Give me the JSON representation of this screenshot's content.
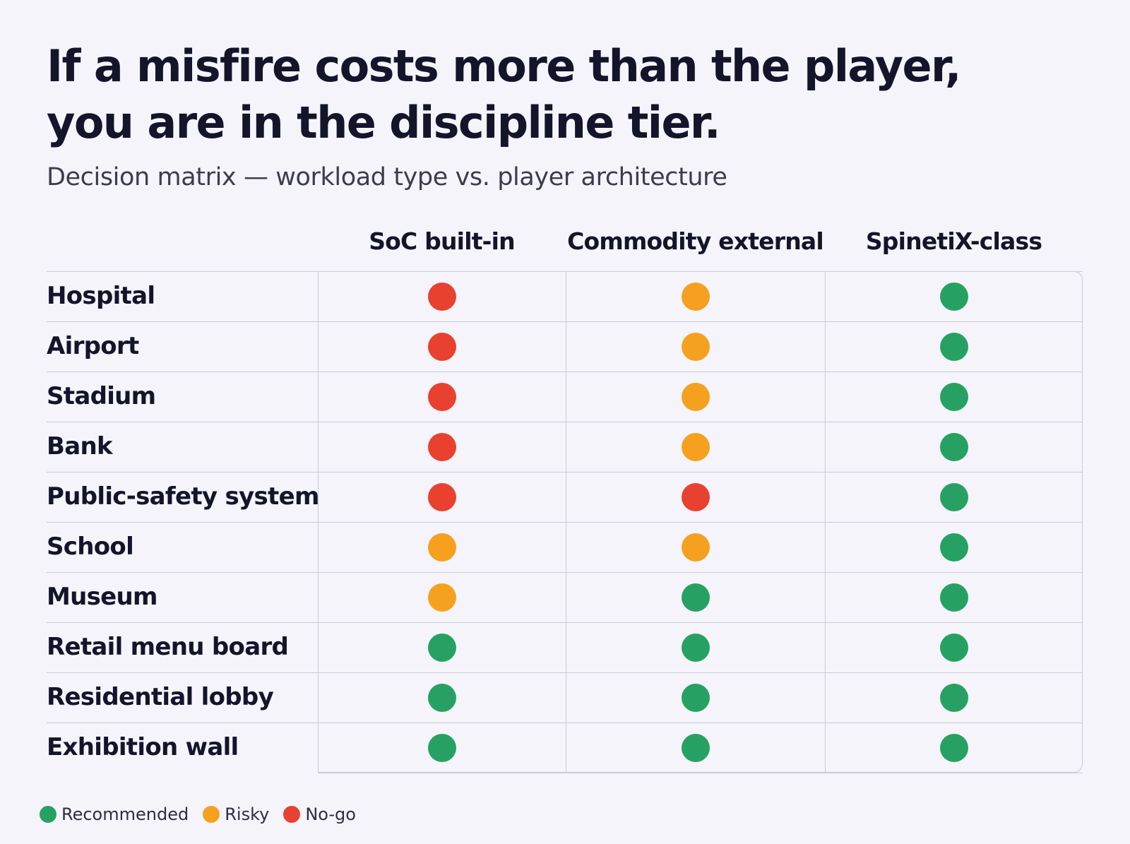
{
  "title_lines": [
    "If a misfire costs more than the player,",
    "you are in the discipline tier."
  ],
  "subtitle": "Decision matrix — workload type vs. player architecture",
  "chart_data": {
    "type": "table",
    "columns": [
      "SoC built-in",
      "Commodity external",
      "SpinetiX-class"
    ],
    "rows": [
      {
        "label": "Hospital",
        "values": [
          "No-go",
          "Risky",
          "Recommended"
        ]
      },
      {
        "label": "Airport",
        "values": [
          "No-go",
          "Risky",
          "Recommended"
        ]
      },
      {
        "label": "Stadium",
        "values": [
          "No-go",
          "Risky",
          "Recommended"
        ]
      },
      {
        "label": "Bank",
        "values": [
          "No-go",
          "Risky",
          "Recommended"
        ]
      },
      {
        "label": "Public-safety system",
        "values": [
          "No-go",
          "No-go",
          "Recommended"
        ]
      },
      {
        "label": "School",
        "values": [
          "Risky",
          "Risky",
          "Recommended"
        ]
      },
      {
        "label": "Museum",
        "values": [
          "Risky",
          "Recommended",
          "Recommended"
        ]
      },
      {
        "label": "Retail menu board",
        "values": [
          "Recommended",
          "Recommended",
          "Recommended"
        ]
      },
      {
        "label": "Residential lobby",
        "values": [
          "Recommended",
          "Recommended",
          "Recommended"
        ]
      },
      {
        "label": "Exhibition wall",
        "values": [
          "Recommended",
          "Recommended",
          "Recommended"
        ]
      }
    ],
    "legend": [
      {
        "label": "Recommended",
        "color": "#27a163"
      },
      {
        "label": "Risky",
        "color": "#f5a11f"
      },
      {
        "label": "No-go",
        "color": "#e8412f"
      }
    ],
    "legend_position": "bottom-left"
  }
}
